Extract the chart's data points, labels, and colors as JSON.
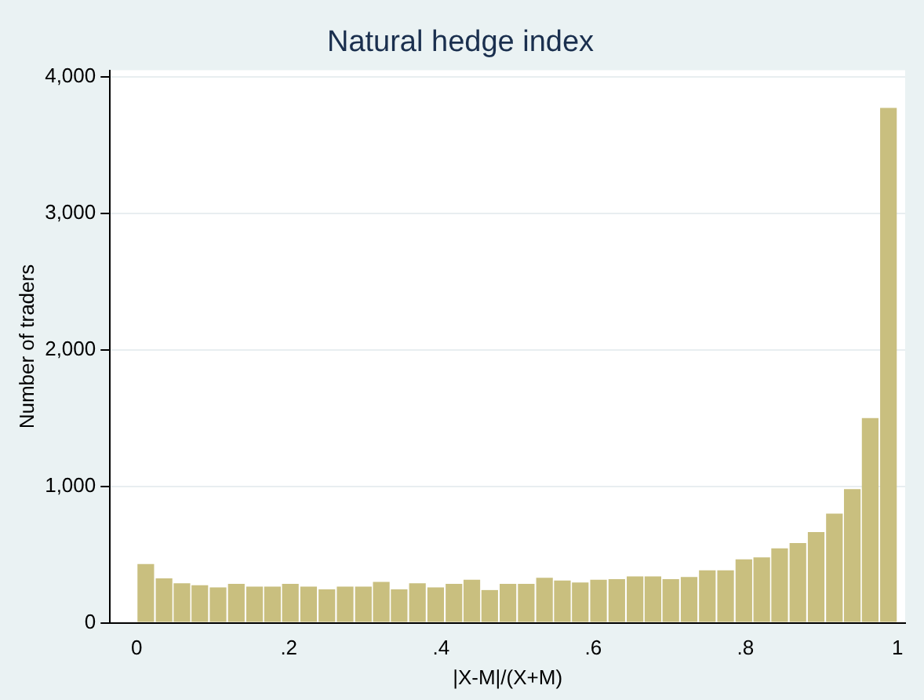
{
  "chart_data": {
    "type": "histogram",
    "title": "Natural hedge index",
    "xlabel": "|X-M|/(X+M)",
    "ylabel": "Number of traders",
    "bins": [
      0,
      0.024,
      0.048,
      0.071,
      0.095,
      0.119,
      0.143,
      0.167,
      0.19,
      0.214,
      0.238,
      0.262,
      0.286,
      0.31,
      0.333,
      0.357,
      0.381,
      0.405,
      0.429,
      0.452,
      0.476,
      0.5,
      0.524,
      0.548,
      0.571,
      0.595,
      0.619,
      0.643,
      0.667,
      0.69,
      0.714,
      0.738,
      0.762,
      0.786,
      0.81,
      0.833,
      0.857,
      0.881,
      0.905,
      0.929,
      0.952,
      0.976,
      1
    ],
    "values": [
      430,
      325,
      290,
      275,
      260,
      285,
      265,
      265,
      285,
      265,
      245,
      265,
      265,
      300,
      245,
      290,
      260,
      285,
      315,
      240,
      285,
      285,
      330,
      310,
      295,
      315,
      320,
      340,
      340,
      320,
      335,
      385,
      385,
      465,
      480,
      545,
      585,
      665,
      800,
      980,
      1500,
      3775
    ],
    "color": "#c9bf7f",
    "xlim": [
      -0.035,
      1.01
    ],
    "xticks": [
      0,
      {
        "value": 0.2,
        "label": ".2"
      },
      {
        "value": 0.4,
        "label": ".4"
      },
      {
        "value": 0.6,
        "label": ".6"
      },
      {
        "value": 0.8,
        "label": ".8"
      },
      1
    ],
    "ylim": [
      0,
      4050
    ],
    "yticks": [
      0,
      {
        "value": 1000,
        "label": "1,000"
      },
      {
        "value": 2000,
        "label": "2,000"
      },
      {
        "value": 3000,
        "label": "3,000"
      },
      {
        "value": 4000,
        "label": "4,000"
      }
    ],
    "grid": "y"
  }
}
